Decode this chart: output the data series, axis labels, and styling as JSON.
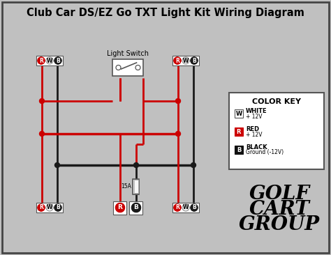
{
  "title": "Club Car DS/EZ Go TXT Light Kit Wiring Diagram",
  "bg_color": "#c0c0c0",
  "border_color": "#444444",
  "wire_black": "#1a1a1a",
  "wire_red": "#cc0000",
  "title_fontsize": 10.5,
  "color_key_title": "COLOR KEY",
  "ck_entries": [
    {
      "label": "W",
      "bg": "#ffffff",
      "border": "#555555",
      "text1": "WHITE",
      "text2": "+ 12V"
    },
    {
      "label": "R",
      "bg": "#cc0000",
      "border": "#cc0000",
      "text1": "RED",
      "text2": "+ 12V"
    },
    {
      "label": "B",
      "bg": "#111111",
      "border": "#111111",
      "text1": "BLACK",
      "text2": "Ground (-12V)"
    }
  ],
  "fuse_label": "15A",
  "switch_label": "Light Switch",
  "logo_lines": [
    "GOLF",
    "CART",
    "GROUP"
  ]
}
